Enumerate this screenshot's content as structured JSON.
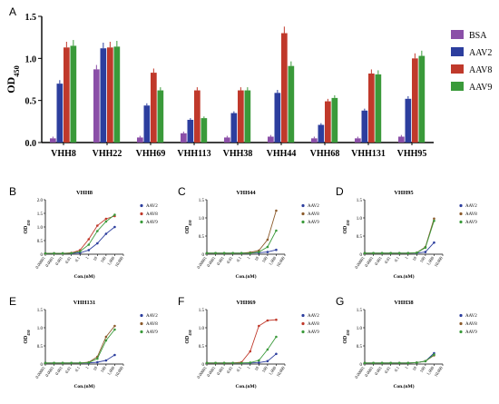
{
  "panel_letters": {
    "A": "A",
    "B": "B",
    "C": "C",
    "D": "D",
    "E": "E",
    "F": "F",
    "G": "G"
  },
  "chart_data": [
    {
      "panel": "A",
      "type": "bar",
      "ylabel": "OD450",
      "ylim": [
        0,
        1.5
      ],
      "yticks": [
        "0.0",
        "0.5",
        "1.0",
        "1.5"
      ],
      "categories": [
        "VHH8",
        "VHH22",
        "VHH69",
        "VHH113",
        "VHH38",
        "VHH44",
        "VHH68",
        "VHH131",
        "VHH95"
      ],
      "series": [
        {
          "name": "BSA",
          "color": "#8b4fa8",
          "values": [
            0.05,
            0.87,
            0.06,
            0.11,
            0.06,
            0.07,
            0.05,
            0.05,
            0.07
          ]
        },
        {
          "name": "AAV2",
          "color": "#2c3e9e",
          "values": [
            0.7,
            1.12,
            0.44,
            0.27,
            0.35,
            0.59,
            0.21,
            0.38,
            0.52
          ]
        },
        {
          "name": "AAV8",
          "color": "#c0392b",
          "values": [
            1.13,
            1.13,
            0.83,
            0.62,
            0.62,
            1.3,
            0.49,
            0.82,
            1.0
          ]
        },
        {
          "name": "AAV9",
          "color": "#3a9a3a",
          "values": [
            1.15,
            1.14,
            0.62,
            0.29,
            0.62,
            0.91,
            0.53,
            0.81,
            1.03
          ]
        }
      ],
      "legend_position": "right"
    },
    {
      "panel": "B",
      "type": "line",
      "title": "VHH8",
      "ylabel": "OD450",
      "xlabel": "Con.(nM)",
      "ylim": [
        0,
        2.0
      ],
      "yticks": [
        "0",
        "0.5",
        "1.0",
        "1.5",
        "2.0"
      ],
      "xticks": [
        "0.00001",
        "0.0001",
        "0.001",
        "0.01",
        "0.1",
        "1",
        "10",
        "100",
        "1,000",
        "10,000"
      ],
      "series": [
        {
          "name": "AAV2",
          "color": "#2c3e9e",
          "x": [
            1e-05,
            0.0001,
            0.001,
            0.01,
            0.1,
            1,
            10,
            100,
            1000
          ],
          "y": [
            0.03,
            0.03,
            0.03,
            0.03,
            0.05,
            0.15,
            0.4,
            0.75,
            1.0
          ]
        },
        {
          "name": "AAV8",
          "color": "#c0392b",
          "x": [
            1e-05,
            0.0001,
            0.001,
            0.01,
            0.1,
            1,
            10,
            100,
            1000
          ],
          "y": [
            0.03,
            0.03,
            0.03,
            0.05,
            0.15,
            0.55,
            1.05,
            1.3,
            1.4
          ]
        },
        {
          "name": "AAV9",
          "color": "#3a9a3a",
          "x": [
            1e-05,
            0.0001,
            0.001,
            0.01,
            0.1,
            1,
            10,
            100,
            1000
          ],
          "y": [
            0.03,
            0.03,
            0.03,
            0.04,
            0.1,
            0.35,
            0.85,
            1.2,
            1.45
          ]
        }
      ]
    },
    {
      "panel": "C",
      "type": "line",
      "title": "VHH44",
      "ylabel": "OD450",
      "xlabel": "Con.(nM)",
      "ylim": [
        0,
        1.5
      ],
      "yticks": [
        "0",
        "0.5",
        "1.0",
        "1.5"
      ],
      "xticks": [
        "0.00001",
        "0.0001",
        "0.001",
        "0.01",
        "0.1",
        "1",
        "10",
        "100",
        "1,000",
        "10,000"
      ],
      "series": [
        {
          "name": "AAV2",
          "color": "#2c3e9e",
          "x": [
            1e-05,
            0.0001,
            0.001,
            0.01,
            0.1,
            1,
            10,
            100,
            1000
          ],
          "y": [
            0.03,
            0.03,
            0.03,
            0.03,
            0.03,
            0.03,
            0.04,
            0.06,
            0.12
          ]
        },
        {
          "name": "AAV8",
          "color": "#8b5a2b",
          "x": [
            1e-05,
            0.0001,
            0.001,
            0.01,
            0.1,
            1,
            10,
            100,
            1000
          ],
          "y": [
            0.03,
            0.03,
            0.03,
            0.03,
            0.03,
            0.05,
            0.1,
            0.4,
            1.2
          ]
        },
        {
          "name": "AAV9",
          "color": "#3a9a3a",
          "x": [
            1e-05,
            0.0001,
            0.001,
            0.01,
            0.1,
            1,
            10,
            100,
            1000
          ],
          "y": [
            0.03,
            0.03,
            0.03,
            0.03,
            0.03,
            0.03,
            0.06,
            0.2,
            0.65
          ]
        }
      ]
    },
    {
      "panel": "D",
      "type": "line",
      "title": "VHH95",
      "ylabel": "OD450",
      "xlabel": "Con.(nM)",
      "ylim": [
        0,
        1.5
      ],
      "yticks": [
        "0",
        "0.5",
        "1.0",
        "1.5"
      ],
      "xticks": [
        "0.00001",
        "0.0001",
        "0.001",
        "0.01",
        "0.1",
        "1",
        "10",
        "100",
        "1,000",
        "10,000"
      ],
      "series": [
        {
          "name": "AAV2",
          "color": "#2c3e9e",
          "x": [
            1e-05,
            0.0001,
            0.001,
            0.01,
            0.1,
            1,
            10,
            100,
            1000
          ],
          "y": [
            0.03,
            0.03,
            0.03,
            0.03,
            0.03,
            0.03,
            0.03,
            0.06,
            0.32
          ]
        },
        {
          "name": "AAV8",
          "color": "#8b5a2b",
          "x": [
            1e-05,
            0.0001,
            0.001,
            0.01,
            0.1,
            1,
            10,
            100,
            1000
          ],
          "y": [
            0.03,
            0.03,
            0.03,
            0.03,
            0.03,
            0.03,
            0.04,
            0.2,
            0.98
          ]
        },
        {
          "name": "AAV9",
          "color": "#3a9a3a",
          "x": [
            1e-05,
            0.0001,
            0.001,
            0.01,
            0.1,
            1,
            10,
            100,
            1000
          ],
          "y": [
            0.03,
            0.03,
            0.03,
            0.03,
            0.03,
            0.03,
            0.04,
            0.18,
            0.92
          ]
        }
      ]
    },
    {
      "panel": "E",
      "type": "line",
      "title": "VHH131",
      "ylabel": "OD450",
      "xlabel": "Con.(nM)",
      "ylim": [
        0,
        1.5
      ],
      "yticks": [
        "0",
        "0.5",
        "1.0",
        "1.5"
      ],
      "xticks": [
        "0.00001",
        "0.0001",
        "0.001",
        "0.01",
        "0.1",
        "1",
        "10",
        "100",
        "1,000",
        "10,000"
      ],
      "series": [
        {
          "name": "AAV2",
          "color": "#2c3e9e",
          "x": [
            1e-05,
            0.0001,
            0.001,
            0.01,
            0.1,
            1,
            10,
            100,
            1000
          ],
          "y": [
            0.03,
            0.03,
            0.03,
            0.03,
            0.03,
            0.03,
            0.05,
            0.1,
            0.25
          ]
        },
        {
          "name": "AAV8",
          "color": "#8b5a2b",
          "x": [
            1e-05,
            0.0001,
            0.001,
            0.01,
            0.1,
            1,
            10,
            100,
            1000
          ],
          "y": [
            0.03,
            0.03,
            0.03,
            0.03,
            0.03,
            0.05,
            0.2,
            0.75,
            1.05
          ]
        },
        {
          "name": "AAV9",
          "color": "#3a9a3a",
          "x": [
            1e-05,
            0.0001,
            0.001,
            0.01,
            0.1,
            1,
            10,
            100,
            1000
          ],
          "y": [
            0.03,
            0.03,
            0.03,
            0.03,
            0.03,
            0.04,
            0.15,
            0.65,
            0.95
          ]
        }
      ]
    },
    {
      "panel": "F",
      "type": "line",
      "title": "VHH69",
      "ylabel": "OD450",
      "xlabel": "Con.(nM)",
      "ylim": [
        0,
        1.5
      ],
      "yticks": [
        "0",
        "0.5",
        "1.0",
        "1.5"
      ],
      "xticks": [
        "0.00001",
        "0.0001",
        "0.001",
        "0.01",
        "0.1",
        "1",
        "10",
        "100",
        "1,000",
        "10,000"
      ],
      "series": [
        {
          "name": "AAV2",
          "color": "#2c3e9e",
          "x": [
            1e-05,
            0.0001,
            0.001,
            0.01,
            0.1,
            1,
            10,
            100,
            1000
          ],
          "y": [
            0.03,
            0.03,
            0.03,
            0.03,
            0.03,
            0.03,
            0.04,
            0.08,
            0.28
          ]
        },
        {
          "name": "AAV8",
          "color": "#c0392b",
          "x": [
            1e-05,
            0.0001,
            0.001,
            0.01,
            0.1,
            1,
            10,
            100,
            1000
          ],
          "y": [
            0.03,
            0.03,
            0.03,
            0.03,
            0.05,
            0.35,
            1.05,
            1.2,
            1.22
          ]
        },
        {
          "name": "AAV9",
          "color": "#3a9a3a",
          "x": [
            1e-05,
            0.0001,
            0.001,
            0.01,
            0.1,
            1,
            10,
            100,
            1000
          ],
          "y": [
            0.03,
            0.03,
            0.03,
            0.03,
            0.03,
            0.04,
            0.1,
            0.4,
            0.75
          ]
        }
      ]
    },
    {
      "panel": "G",
      "type": "line",
      "title": "VHH38",
      "ylabel": "OD450",
      "xlabel": "Con.(nM)",
      "ylim": [
        0,
        1.5
      ],
      "yticks": [
        "0",
        "0.5",
        "1.0",
        "1.5"
      ],
      "xticks": [
        "0.00001",
        "0.0001",
        "0.001",
        "0.01",
        "0.1",
        "1",
        "10",
        "100",
        "1,000",
        "10,000"
      ],
      "series": [
        {
          "name": "AAV2",
          "color": "#2c3e9e",
          "x": [
            1e-05,
            0.0001,
            0.001,
            0.01,
            0.1,
            1,
            10,
            100,
            1000
          ],
          "y": [
            0.03,
            0.03,
            0.03,
            0.03,
            0.03,
            0.03,
            0.04,
            0.08,
            0.3
          ]
        },
        {
          "name": "AAV8",
          "color": "#8b5a2b",
          "x": [
            1e-05,
            0.0001,
            0.001,
            0.01,
            0.1,
            1,
            10,
            100,
            1000
          ],
          "y": [
            0.03,
            0.03,
            0.03,
            0.03,
            0.03,
            0.03,
            0.04,
            0.08,
            0.24
          ]
        },
        {
          "name": "AAV9",
          "color": "#3a9a3a",
          "x": [
            1e-05,
            0.0001,
            0.001,
            0.01,
            0.1,
            1,
            10,
            100,
            1000
          ],
          "y": [
            0.03,
            0.03,
            0.03,
            0.03,
            0.03,
            0.03,
            0.04,
            0.08,
            0.26
          ]
        }
      ]
    }
  ]
}
